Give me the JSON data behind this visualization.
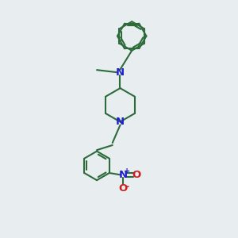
{
  "bg_color": "#e8edf0",
  "bond_color": "#2d6b3a",
  "n_color": "#2020cc",
  "o_color": "#cc2020",
  "lw": 1.5,
  "fs": 8.5,
  "xlim": [
    0,
    10
  ],
  "ylim": [
    0,
    10
  ]
}
